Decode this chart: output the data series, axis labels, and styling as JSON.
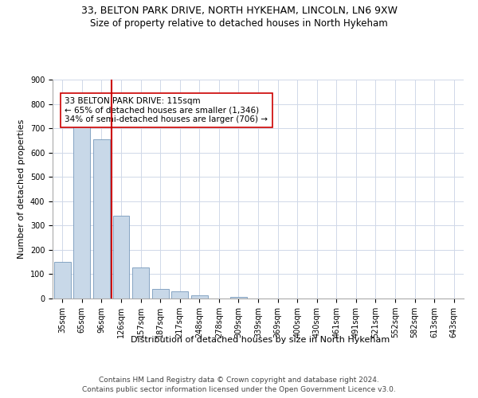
{
  "title_line1": "33, BELTON PARK DRIVE, NORTH HYKEHAM, LINCOLN, LN6 9XW",
  "title_line2": "Size of property relative to detached houses in North Hykeham",
  "xlabel": "Distribution of detached houses by size in North Hykeham",
  "ylabel": "Number of detached properties",
  "categories": [
    "35sqm",
    "65sqm",
    "96sqm",
    "126sqm",
    "157sqm",
    "187sqm",
    "217sqm",
    "248sqm",
    "278sqm",
    "309sqm",
    "339sqm",
    "369sqm",
    "400sqm",
    "430sqm",
    "461sqm",
    "491sqm",
    "521sqm",
    "552sqm",
    "582sqm",
    "613sqm",
    "643sqm"
  ],
  "values": [
    150,
    715,
    655,
    340,
    128,
    40,
    30,
    12,
    0,
    8,
    0,
    0,
    0,
    0,
    0,
    0,
    0,
    0,
    0,
    0,
    0
  ],
  "bar_color": "#c8d8e8",
  "bar_edge_color": "#7799bb",
  "vline_x": 2.5,
  "vline_color": "#cc0000",
  "annotation_text": "33 BELTON PARK DRIVE: 115sqm\n← 65% of detached houses are smaller (1,346)\n34% of semi-detached houses are larger (706) →",
  "annotation_box_color": "#ffffff",
  "annotation_box_edge": "#cc0000",
  "ylim": [
    0,
    900
  ],
  "yticks": [
    0,
    100,
    200,
    300,
    400,
    500,
    600,
    700,
    800,
    900
  ],
  "bg_color": "#ffffff",
  "grid_color": "#d0d8e8",
  "footer_line1": "Contains HM Land Registry data © Crown copyright and database right 2024.",
  "footer_line2": "Contains public sector information licensed under the Open Government Licence v3.0.",
  "title_fontsize": 9,
  "subtitle_fontsize": 8.5,
  "axis_label_fontsize": 8,
  "tick_fontsize": 7,
  "annotation_fontsize": 7.5,
  "footer_fontsize": 6.5
}
